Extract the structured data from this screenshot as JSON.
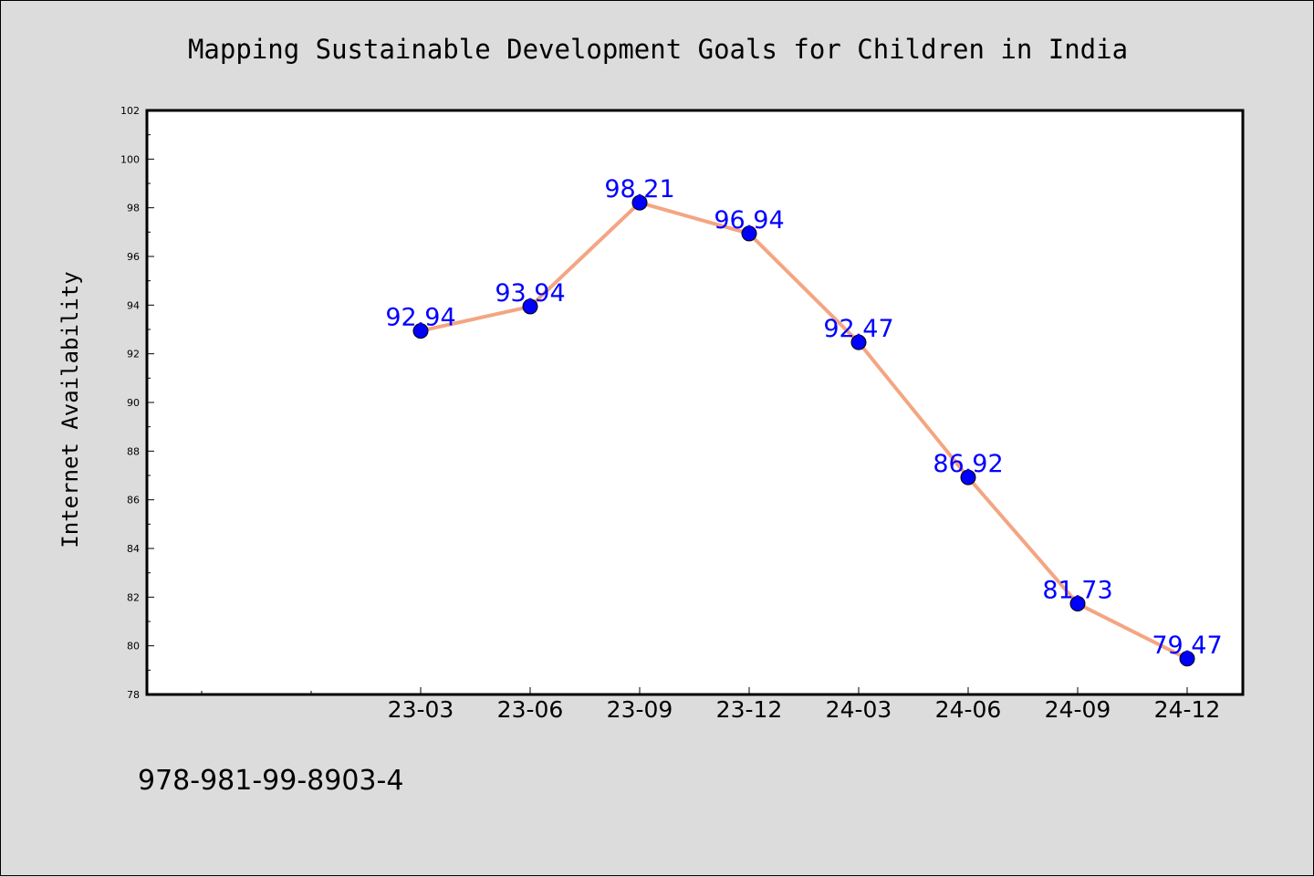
{
  "chart_data": {
    "type": "line",
    "title": "Mapping Sustainable Development Goals for Children in India",
    "xlabel": "",
    "ylabel": "Internet Availability",
    "categories": [
      "23-03",
      "23-06",
      "23-09",
      "23-12",
      "24-03",
      "24-06",
      "24-09",
      "24-12"
    ],
    "values": [
      92.94,
      93.94,
      98.21,
      96.94,
      92.47,
      86.92,
      81.73,
      79.47
    ],
    "data_labels": [
      "92.94",
      "93.94",
      "98.21",
      "96.94",
      "92.47",
      "86.92",
      "81.73",
      "79.47"
    ],
    "yticks": [
      "78",
      "80",
      "82",
      "84",
      "86",
      "88",
      "90",
      "92",
      "94",
      "96",
      "98",
      "100",
      "102"
    ],
    "ylim": [
      78,
      102
    ],
    "grid": false,
    "line_color": "#f4a582",
    "marker_color": "#0000ff",
    "label_color": "#0000ff"
  },
  "footer": {
    "isbn": "978-981-99-8903-4"
  }
}
